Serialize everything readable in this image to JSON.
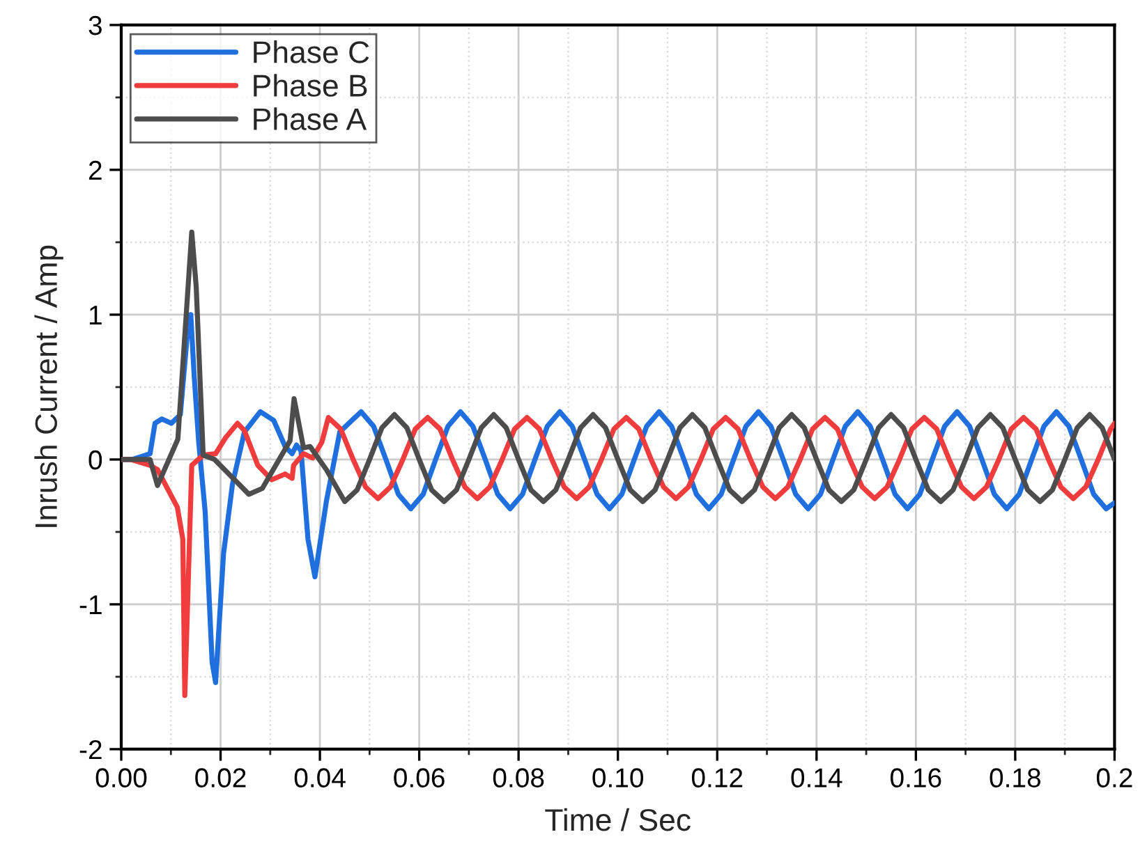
{
  "chart_data": {
    "type": "line",
    "xlabel": "Time / Sec",
    "ylabel": "Inrush Current / Amp",
    "xlim": [
      0,
      0.2
    ],
    "ylim": [
      -2,
      3
    ],
    "xticks": [
      {
        "value": 0,
        "label": "0.00"
      },
      {
        "value": 0.02,
        "label": "0.02"
      },
      {
        "value": 0.04,
        "label": "0.04"
      },
      {
        "value": 0.06,
        "label": "0.06"
      },
      {
        "value": 0.08,
        "label": "0.08"
      },
      {
        "value": 0.1,
        "label": "0.10"
      },
      {
        "value": 0.12,
        "label": "0.12"
      },
      {
        "value": 0.14,
        "label": "0.14"
      },
      {
        "value": 0.16,
        "label": "0.16"
      },
      {
        "value": 0.18,
        "label": "0.18"
      },
      {
        "value": 0.2,
        "label": "0.2"
      }
    ],
    "yticks": [
      -2,
      -1,
      0,
      1,
      2,
      3
    ],
    "grid": true,
    "legend": "top left",
    "marker": "none",
    "line_style": "solid",
    "series": [
      {
        "name": "Phase C",
        "color": "#1f6fde",
        "x": [
          0,
          0.0022,
          0.0058,
          0.0068,
          0.0082,
          0.0101,
          0.0119,
          0.0133,
          0.014,
          0.0147,
          0.0156,
          0.0169,
          0.0183,
          0.019,
          0.0206,
          0.0224,
          0.0248,
          0.028,
          0.0307,
          0.033,
          0.0344,
          0.0353,
          0.0362,
          0.0376,
          0.039,
          0.0413,
          0.044,
          0.0483,
          0.0508,
          0.0533,
          0.0558,
          0.0583,
          0.0608,
          0.0633,
          0.0658,
          0.0683,
          0.0708,
          0.0733,
          0.0758,
          0.0783,
          0.0808,
          0.0833,
          0.0858,
          0.0883,
          0.0908,
          0.0933,
          0.0958,
          0.0983,
          0.1008,
          0.1033,
          0.1058,
          0.1083,
          0.1108,
          0.1133,
          0.1158,
          0.1183,
          0.1208,
          0.1233,
          0.1258,
          0.1283,
          0.1308,
          0.1333,
          0.1358,
          0.1383,
          0.1408,
          0.1433,
          0.1458,
          0.1483,
          0.1508,
          0.1533,
          0.1558,
          0.1583,
          0.1608,
          0.1633,
          0.1658,
          0.1683,
          0.1708,
          0.1733,
          0.1758,
          0.1783,
          0.1808,
          0.1833,
          0.1858,
          0.1883,
          0.1908,
          0.1933,
          0.1958,
          0.1983,
          0.2
        ],
        "values": [
          0,
          0,
          0.04,
          0.25,
          0.28,
          0.25,
          0.31,
          0.86,
          1.0,
          0.57,
          0.12,
          -0.36,
          -1.4,
          -1.54,
          -0.65,
          -0.17,
          0.19,
          0.33,
          0.27,
          0.09,
          0.04,
          0.1,
          0.06,
          -0.55,
          -0.81,
          -0.29,
          0.19,
          0.33,
          0.23,
          0,
          -0.24,
          -0.34,
          -0.24,
          0,
          0.23,
          0.33,
          0.23,
          0,
          -0.24,
          -0.34,
          -0.24,
          0,
          0.23,
          0.33,
          0.23,
          0,
          -0.24,
          -0.34,
          -0.24,
          0,
          0.23,
          0.33,
          0.23,
          0,
          -0.24,
          -0.34,
          -0.24,
          0,
          0.23,
          0.33,
          0.23,
          0,
          -0.24,
          -0.34,
          -0.24,
          0,
          0.23,
          0.33,
          0.23,
          0,
          -0.24,
          -0.34,
          -0.24,
          0,
          0.23,
          0.33,
          0.23,
          0,
          -0.24,
          -0.34,
          -0.24,
          0,
          0.23,
          0.33,
          0.23,
          0,
          -0.24,
          -0.34,
          -0.3
        ]
      },
      {
        "name": "Phase B",
        "color": "#f03c3c",
        "x": [
          0,
          0.002,
          0.0058,
          0.0073,
          0.0113,
          0.0124,
          0.0128,
          0.0142,
          0.0165,
          0.019,
          0.021,
          0.0234,
          0.0248,
          0.0275,
          0.0303,
          0.033,
          0.0344,
          0.0347,
          0.0367,
          0.0385,
          0.0404,
          0.0417,
          0.0442,
          0.0467,
          0.0492,
          0.0517,
          0.0542,
          0.0567,
          0.0592,
          0.0617,
          0.0642,
          0.0667,
          0.0692,
          0.0717,
          0.0742,
          0.0767,
          0.0792,
          0.0817,
          0.0842,
          0.0867,
          0.0892,
          0.0917,
          0.0942,
          0.0967,
          0.0992,
          0.1017,
          0.1042,
          0.1067,
          0.1092,
          0.1117,
          0.1142,
          0.1167,
          0.1192,
          0.1217,
          0.1242,
          0.1267,
          0.1292,
          0.1317,
          0.1342,
          0.1367,
          0.1392,
          0.1417,
          0.1442,
          0.1467,
          0.1492,
          0.1517,
          0.1542,
          0.1567,
          0.1592,
          0.1617,
          0.1642,
          0.1667,
          0.1692,
          0.1717,
          0.1742,
          0.1767,
          0.1792,
          0.1817,
          0.1842,
          0.1867,
          0.1892,
          0.1917,
          0.1942,
          0.1967,
          0.1992,
          0.2
        ],
        "values": [
          0,
          0,
          -0.04,
          -0.07,
          -0.33,
          -0.55,
          -1.63,
          -0.04,
          0.03,
          0.04,
          0.15,
          0.25,
          0.2,
          -0.04,
          -0.14,
          -0.1,
          -0.13,
          -0.04,
          0.04,
          0.01,
          0.12,
          0.29,
          0.21,
          0,
          -0.19,
          -0.27,
          -0.19,
          0,
          0.21,
          0.29,
          0.21,
          0,
          -0.19,
          -0.27,
          -0.19,
          0,
          0.21,
          0.29,
          0.21,
          0,
          -0.19,
          -0.27,
          -0.19,
          0,
          0.21,
          0.29,
          0.21,
          0,
          -0.19,
          -0.27,
          -0.19,
          0,
          0.21,
          0.29,
          0.21,
          0,
          -0.19,
          -0.27,
          -0.19,
          0,
          0.21,
          0.29,
          0.21,
          0,
          -0.19,
          -0.27,
          -0.19,
          0,
          0.21,
          0.29,
          0.21,
          0,
          -0.19,
          -0.27,
          -0.19,
          0,
          0.21,
          0.29,
          0.21,
          0,
          -0.19,
          -0.27,
          -0.19,
          0,
          0.21,
          0.25
        ]
      },
      {
        "name": "Phase A",
        "color": "#4d4d4d",
        "x": [
          0,
          0.0022,
          0.0058,
          0.0073,
          0.0114,
          0.0142,
          0.0151,
          0.0165,
          0.0188,
          0.0257,
          0.0284,
          0.034,
          0.0348,
          0.0367,
          0.038,
          0.0413,
          0.045,
          0.0475,
          0.05,
          0.0525,
          0.055,
          0.0575,
          0.06,
          0.0625,
          0.065,
          0.0675,
          0.07,
          0.0725,
          0.075,
          0.0775,
          0.08,
          0.0825,
          0.085,
          0.0875,
          0.09,
          0.0925,
          0.095,
          0.0975,
          0.1,
          0.1025,
          0.105,
          0.1075,
          0.11,
          0.1125,
          0.115,
          0.1175,
          0.12,
          0.1225,
          0.125,
          0.1275,
          0.13,
          0.1325,
          0.135,
          0.1375,
          0.14,
          0.1425,
          0.145,
          0.1475,
          0.15,
          0.1525,
          0.155,
          0.1575,
          0.16,
          0.1625,
          0.165,
          0.1675,
          0.17,
          0.1725,
          0.175,
          0.1775,
          0.18,
          0.1825,
          0.185,
          0.1875,
          0.19,
          0.1925,
          0.195,
          0.1975,
          0.2
        ],
        "values": [
          0,
          0,
          0,
          -0.18,
          0.14,
          1.57,
          1.19,
          0.03,
          0,
          -0.24,
          -0.2,
          0.13,
          0.42,
          0.08,
          0.09,
          -0.07,
          -0.29,
          -0.21,
          0,
          0.22,
          0.31,
          0.22,
          0,
          -0.21,
          -0.29,
          -0.21,
          0,
          0.22,
          0.31,
          0.22,
          0,
          -0.21,
          -0.29,
          -0.21,
          0,
          0.22,
          0.31,
          0.22,
          0,
          -0.21,
          -0.29,
          -0.21,
          0,
          0.22,
          0.31,
          0.22,
          0,
          -0.21,
          -0.29,
          -0.21,
          0,
          0.22,
          0.31,
          0.22,
          0,
          -0.21,
          -0.29,
          -0.21,
          0,
          0.22,
          0.31,
          0.22,
          0,
          -0.21,
          -0.29,
          -0.21,
          0,
          0.22,
          0.31,
          0.22,
          0,
          -0.21,
          -0.29,
          -0.21,
          0,
          0.22,
          0.31,
          0.22,
          0
        ]
      }
    ]
  }
}
